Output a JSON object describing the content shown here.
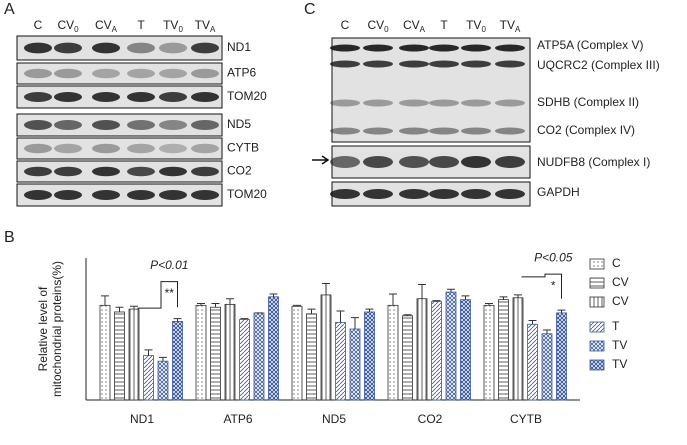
{
  "panels": {
    "a": "A",
    "b": "B",
    "c": "C"
  },
  "blot_a": {
    "lanes": [
      {
        "base": "C",
        "sub": ""
      },
      {
        "base": "CV",
        "sub": "0"
      },
      {
        "base": "CV",
        "sub": "A"
      },
      {
        "base": "T",
        "sub": ""
      },
      {
        "base": "TV",
        "sub": "0"
      },
      {
        "base": "TV",
        "sub": "A"
      }
    ],
    "rows": [
      "ND1",
      "ATP6",
      "TOM20",
      "ND5",
      "CYTB",
      "CO2",
      "TOM20"
    ]
  },
  "blot_c": {
    "lanes": [
      {
        "base": "C",
        "sub": ""
      },
      {
        "base": "CV",
        "sub": "0"
      },
      {
        "base": "CV",
        "sub": "A"
      },
      {
        "base": "T",
        "sub": ""
      },
      {
        "base": "TV",
        "sub": "0"
      },
      {
        "base": "TV",
        "sub": "A"
      }
    ],
    "rows": [
      "ATP5A (Complex V)",
      "UQCRC2 (Complex III)",
      "SDHB (Complex II)",
      "CO2 (Complex IV)",
      "NUDFB8 (Complex I)",
      "GAPDH"
    ]
  },
  "chart_data": {
    "type": "bar",
    "y_label": [
      "Relative level of",
      "mitochondrial proteins(%)"
    ],
    "categories": [
      "ND1",
      "ATP6",
      "ND5",
      "CO2",
      "CYTB"
    ],
    "ylim": [
      0,
      150
    ],
    "series": [
      {
        "name": "C",
        "sub": "",
        "color": "#333333",
        "pattern": "dots",
        "values": [
          100,
          100,
          99,
          100,
          100
        ],
        "errors": [
          10,
          2,
          1,
          12,
          2
        ]
      },
      {
        "name": "CV",
        "sub": "0",
        "color": "#333333",
        "pattern": "hlines",
        "values": [
          93,
          98,
          91,
          89,
          106
        ],
        "errors": [
          5,
          4,
          5,
          1,
          3
        ]
      },
      {
        "name": "CV",
        "sub": "A",
        "color": "#333333",
        "pattern": "vlines",
        "values": [
          96,
          101,
          111,
          107,
          108
        ],
        "errors": [
          3,
          6,
          12,
          15,
          3
        ]
      },
      {
        "name": "T",
        "sub": "",
        "color": "#3b5a9a",
        "pattern": "diag",
        "values": [
          47,
          85,
          82,
          104,
          80
        ],
        "errors": [
          6,
          1,
          12,
          1,
          4
        ]
      },
      {
        "name": "TV",
        "sub": "0",
        "color": "#3b5a9a",
        "pattern": "cross",
        "values": [
          41,
          92,
          75,
          114,
          70
        ],
        "errors": [
          4,
          0,
          12,
          3,
          4
        ]
      },
      {
        "name": "TV",
        "sub": "A",
        "color": "#3b5a9a",
        "pattern": "dense",
        "values": [
          83,
          109,
          93,
          106,
          92
        ],
        "errors": [
          3,
          3,
          3,
          4,
          3
        ]
      }
    ],
    "annotations": [
      {
        "category": 0,
        "p": "P<0.01",
        "stars": "**"
      },
      {
        "category": 4,
        "p": "P<0.05",
        "stars": "*"
      }
    ]
  }
}
